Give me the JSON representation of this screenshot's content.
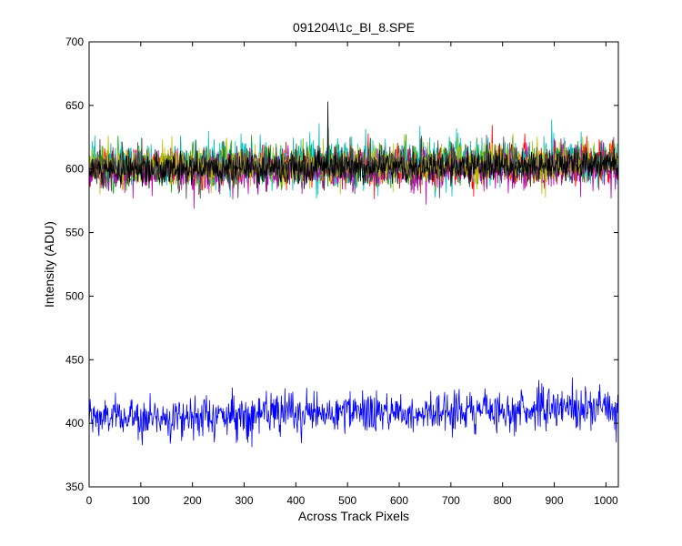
{
  "chart_data": {
    "type": "line",
    "title": "091204\\1c_BI_8.SPE",
    "xlabel": "Across Track Pixels",
    "ylabel": "Intensity (ADU)",
    "xlim": [
      0,
      1024
    ],
    "ylim": [
      350,
      700
    ],
    "xticks": [
      0,
      100,
      200,
      300,
      400,
      500,
      600,
      700,
      800,
      900,
      1000
    ],
    "yticks": [
      350,
      400,
      450,
      500,
      550,
      600,
      650,
      700
    ],
    "grid": false,
    "legend": "none",
    "box": true,
    "n_points": 1024,
    "series": [
      {
        "color": "#0000ff",
        "mean": 404,
        "slope_per_1000px": 8,
        "noise_sd": 8,
        "spikes": [
          [
            935,
            436
          ],
          [
            870,
            434
          ],
          [
            1020,
            385
          ]
        ]
      },
      {
        "color": "#00aa00",
        "mean": 601,
        "slope_per_1000px": 4,
        "noise_sd": 8,
        "spikes": []
      },
      {
        "color": "#ff0000",
        "mean": 600,
        "slope_per_1000px": 4,
        "noise_sd": 8,
        "spikes": [
          [
            540,
            628
          ]
        ]
      },
      {
        "color": "#00bfbf",
        "mean": 603,
        "slope_per_1000px": 4,
        "noise_sd": 9,
        "spikes": [
          [
            445,
            636
          ],
          [
            640,
            634
          ]
        ]
      },
      {
        "color": "#bf00bf",
        "mean": 598,
        "slope_per_1000px": 4,
        "noise_sd": 8,
        "spikes": []
      },
      {
        "color": "#bfbf00",
        "mean": 602,
        "slope_per_1000px": 4,
        "noise_sd": 8,
        "spikes": []
      },
      {
        "color": "#404040",
        "mean": 601,
        "slope_per_1000px": 4,
        "noise_sd": 8,
        "spikes": []
      },
      {
        "color": "#000000",
        "mean": 599,
        "slope_per_1000px": 4,
        "noise_sd": 6,
        "spikes": [
          [
            462,
            653
          ]
        ]
      }
    ]
  }
}
